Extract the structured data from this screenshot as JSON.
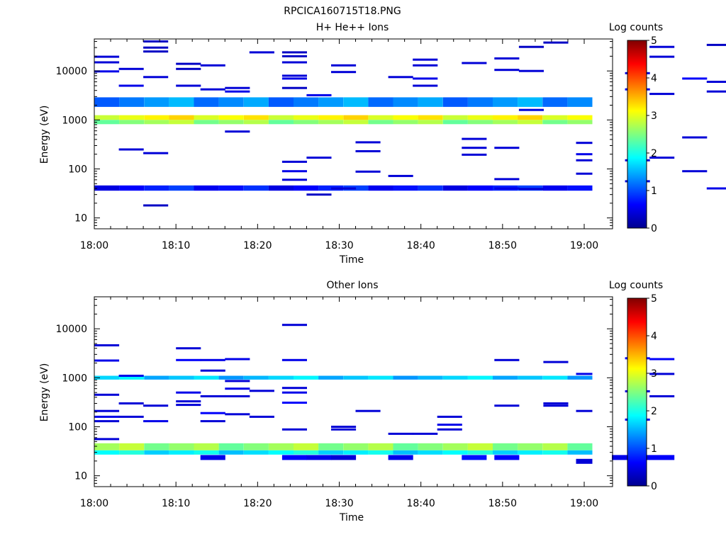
{
  "figure_title": "RPCICA160715T18.PNG",
  "chart_data": [
    {
      "type": "heatmap",
      "title": "H+ He++ Ions",
      "xlabel": "Time",
      "ylabel": "Energy (eV)",
      "x_ticks": [
        "18:00",
        "18:10",
        "18:20",
        "18:30",
        "18:40",
        "18:50",
        "19:00"
      ],
      "xlim": [
        "18:00",
        "19:01"
      ],
      "y_scale": "log",
      "y_ticks": [
        10,
        100,
        1000,
        10000
      ],
      "ylim": [
        6,
        45000
      ],
      "colorbar": {
        "label": "Log counts",
        "range": [
          0,
          5
        ],
        "ticks": [
          0,
          1,
          2,
          3,
          4,
          5
        ]
      },
      "bands": [
        {
          "e_lo": 1000,
          "e_hi": 1250,
          "level": 3.1
        },
        {
          "e_lo": 820,
          "e_hi": 1000,
          "level": 2.6
        },
        {
          "e_lo": 1850,
          "e_hi": 2900,
          "level": 1.3
        },
        {
          "e_lo": 36,
          "e_hi": 46,
          "level": 0.7
        }
      ],
      "specks": [
        [
          0,
          19500,
          0.4
        ],
        [
          0,
          15000,
          0.4
        ],
        [
          0,
          9800,
          0.5
        ],
        [
          3,
          11000,
          0.4
        ],
        [
          3,
          5000,
          0.5
        ],
        [
          3,
          250,
          0.4
        ],
        [
          6,
          40000,
          0.3
        ],
        [
          6,
          30000,
          0.3
        ],
        [
          6,
          25000,
          0.3
        ],
        [
          6,
          7500,
          0.4
        ],
        [
          6,
          210,
          0.4
        ],
        [
          6,
          18,
          0.3
        ],
        [
          10,
          14000,
          0.3
        ],
        [
          10,
          11000,
          0.3
        ],
        [
          10,
          5000,
          0.4
        ],
        [
          13,
          13000,
          0.4
        ],
        [
          13,
          4200,
          0.4
        ],
        [
          16,
          4500,
          0.4
        ],
        [
          16,
          3800,
          0.5
        ],
        [
          16,
          580,
          0.4
        ],
        [
          19,
          24000,
          0.4
        ],
        [
          23,
          24000,
          0.3
        ],
        [
          23,
          20000,
          0.3
        ],
        [
          23,
          15000,
          0.4
        ],
        [
          23,
          8000,
          0.4
        ],
        [
          23,
          7000,
          0.5
        ],
        [
          23,
          4500,
          0.3
        ],
        [
          23,
          140,
          0.4
        ],
        [
          23,
          90,
          0.5
        ],
        [
          23,
          60,
          0.4
        ],
        [
          26,
          3200,
          0.5
        ],
        [
          26,
          170,
          0.4
        ],
        [
          26,
          30,
          0.3
        ],
        [
          29,
          13000,
          0.4
        ],
        [
          29,
          9500,
          0.4
        ],
        [
          29,
          40,
          0.4
        ],
        [
          32,
          350,
          0.4
        ],
        [
          32,
          230,
          0.4
        ],
        [
          32,
          88,
          0.4
        ],
        [
          36,
          7500,
          0.4
        ],
        [
          36,
          72,
          0.4
        ],
        [
          39,
          17000,
          0.4
        ],
        [
          39,
          13000,
          0.4
        ],
        [
          39,
          7000,
          0.5
        ],
        [
          39,
          5000,
          0.4
        ],
        [
          45,
          14500,
          0.4
        ],
        [
          45,
          410,
          0.4
        ],
        [
          45,
          270,
          0.4
        ],
        [
          45,
          195,
          0.4
        ],
        [
          49,
          18000,
          0.4
        ],
        [
          49,
          10500,
          0.4
        ],
        [
          49,
          270,
          0.4
        ],
        [
          49,
          62,
          0.4
        ],
        [
          49,
          40,
          0.5
        ],
        [
          52,
          31000,
          0.3
        ],
        [
          52,
          10000,
          0.4
        ],
        [
          52,
          1600,
          0.4
        ],
        [
          52,
          39,
          0.4
        ],
        [
          55,
          38000,
          0.3
        ],
        [
          59,
          340,
          0.4
        ],
        [
          59,
          200,
          0.5
        ],
        [
          59,
          150,
          0.4
        ],
        [
          59,
          80,
          0.4
        ],
        [
          65,
          9000,
          0.4
        ],
        [
          65,
          4200,
          0.5
        ],
        [
          65,
          150,
          0.4
        ],
        [
          65,
          56,
          0.4
        ],
        [
          68,
          31000,
          0.4
        ],
        [
          68,
          19500,
          0.4
        ],
        [
          68,
          3400,
          0.4
        ],
        [
          68,
          170,
          0.4
        ],
        [
          72,
          7000,
          0.6
        ],
        [
          72,
          440,
          0.4
        ],
        [
          72,
          90,
          0.4
        ],
        [
          75,
          34000,
          0.3
        ],
        [
          75,
          6000,
          0.4
        ],
        [
          75,
          3800,
          0.4
        ],
        [
          75,
          40,
          0.5
        ]
      ]
    },
    {
      "type": "heatmap",
      "title": "Other Ions",
      "xlabel": "Time",
      "ylabel": "Energy (eV)",
      "x_ticks": [
        "18:00",
        "18:10",
        "18:20",
        "18:30",
        "18:40",
        "18:50",
        "19:00"
      ],
      "xlim": [
        "18:00",
        "19:01"
      ],
      "y_scale": "log",
      "y_ticks": [
        10,
        100,
        1000,
        10000
      ],
      "ylim": [
        6,
        45000
      ],
      "colorbar": {
        "label": "Log counts",
        "range": [
          0,
          5
        ],
        "ticks": [
          0,
          1,
          2,
          3,
          4,
          5
        ]
      },
      "bands": [
        {
          "e_lo": 920,
          "e_hi": 1100,
          "level": 1.6
        },
        {
          "e_lo": 33,
          "e_hi": 46,
          "level": 2.6
        },
        {
          "e_lo": 27,
          "e_hi": 33,
          "level": 1.8
        }
      ],
      "specks": [
        [
          0,
          4600,
          0.4
        ],
        [
          0,
          2250,
          0.5
        ],
        [
          0,
          450,
          0.4
        ],
        [
          0,
          210,
          0.4
        ],
        [
          0,
          160,
          0.5
        ],
        [
          0,
          130,
          0.4
        ],
        [
          0,
          56,
          0.4
        ],
        [
          3,
          1100,
          0.5
        ],
        [
          3,
          300,
          0.4
        ],
        [
          3,
          160,
          0.4
        ],
        [
          6,
          270,
          0.4
        ],
        [
          6,
          130,
          0.5
        ],
        [
          10,
          4000,
          0.4
        ],
        [
          10,
          2300,
          0.6
        ],
        [
          10,
          500,
          0.5
        ],
        [
          10,
          330,
          0.4
        ],
        [
          10,
          280,
          0.4
        ],
        [
          13,
          2300,
          0.5
        ],
        [
          13,
          1400,
          0.4
        ],
        [
          13,
          420,
          0.4
        ],
        [
          13,
          190,
          0.6
        ],
        [
          13,
          130,
          0.4
        ],
        [
          16,
          2400,
          0.5
        ],
        [
          16,
          860,
          0.4
        ],
        [
          16,
          600,
          0.5
        ],
        [
          16,
          420,
          0.4
        ],
        [
          16,
          180,
          0.4
        ],
        [
          19,
          540,
          0.4
        ],
        [
          19,
          160,
          0.4
        ],
        [
          23,
          12000,
          0.4
        ],
        [
          23,
          2300,
          0.5
        ],
        [
          23,
          620,
          0.4
        ],
        [
          23,
          500,
          0.5
        ],
        [
          23,
          310,
          0.6
        ],
        [
          23,
          88,
          0.4
        ],
        [
          29,
          100,
          0.4
        ],
        [
          29,
          88,
          0.4
        ],
        [
          32,
          210,
          0.4
        ],
        [
          36,
          72,
          0.4
        ],
        [
          39,
          72,
          0.4
        ],
        [
          42,
          160,
          0.4
        ],
        [
          42,
          110,
          0.5
        ],
        [
          42,
          88,
          0.4
        ],
        [
          49,
          2300,
          0.4
        ],
        [
          49,
          270,
          0.4
        ],
        [
          55,
          2100,
          0.4
        ],
        [
          55,
          300,
          0.4
        ],
        [
          55,
          270,
          0.4
        ],
        [
          59,
          1200,
          0.5
        ],
        [
          59,
          210,
          0.4
        ],
        [
          65,
          2500,
          0.6
        ],
        [
          65,
          530,
          0.4
        ],
        [
          65,
          140,
          0.5
        ],
        [
          68,
          2400,
          0.6
        ],
        [
          68,
          1200,
          0.4
        ],
        [
          68,
          420,
          0.4
        ]
      ],
      "low_patches": [
        [
          13,
          24,
          0.5
        ],
        [
          23,
          24,
          0.6
        ],
        [
          26,
          24,
          0.5
        ],
        [
          29,
          24,
          0.4
        ],
        [
          36,
          24,
          0.5
        ],
        [
          45,
          24,
          0.7
        ],
        [
          49,
          24,
          0.6
        ],
        [
          59,
          20,
          0.4
        ],
        [
          62,
          24,
          0.5
        ],
        [
          65,
          24,
          0.5
        ],
        [
          68,
          24,
          0.6
        ]
      ]
    }
  ]
}
